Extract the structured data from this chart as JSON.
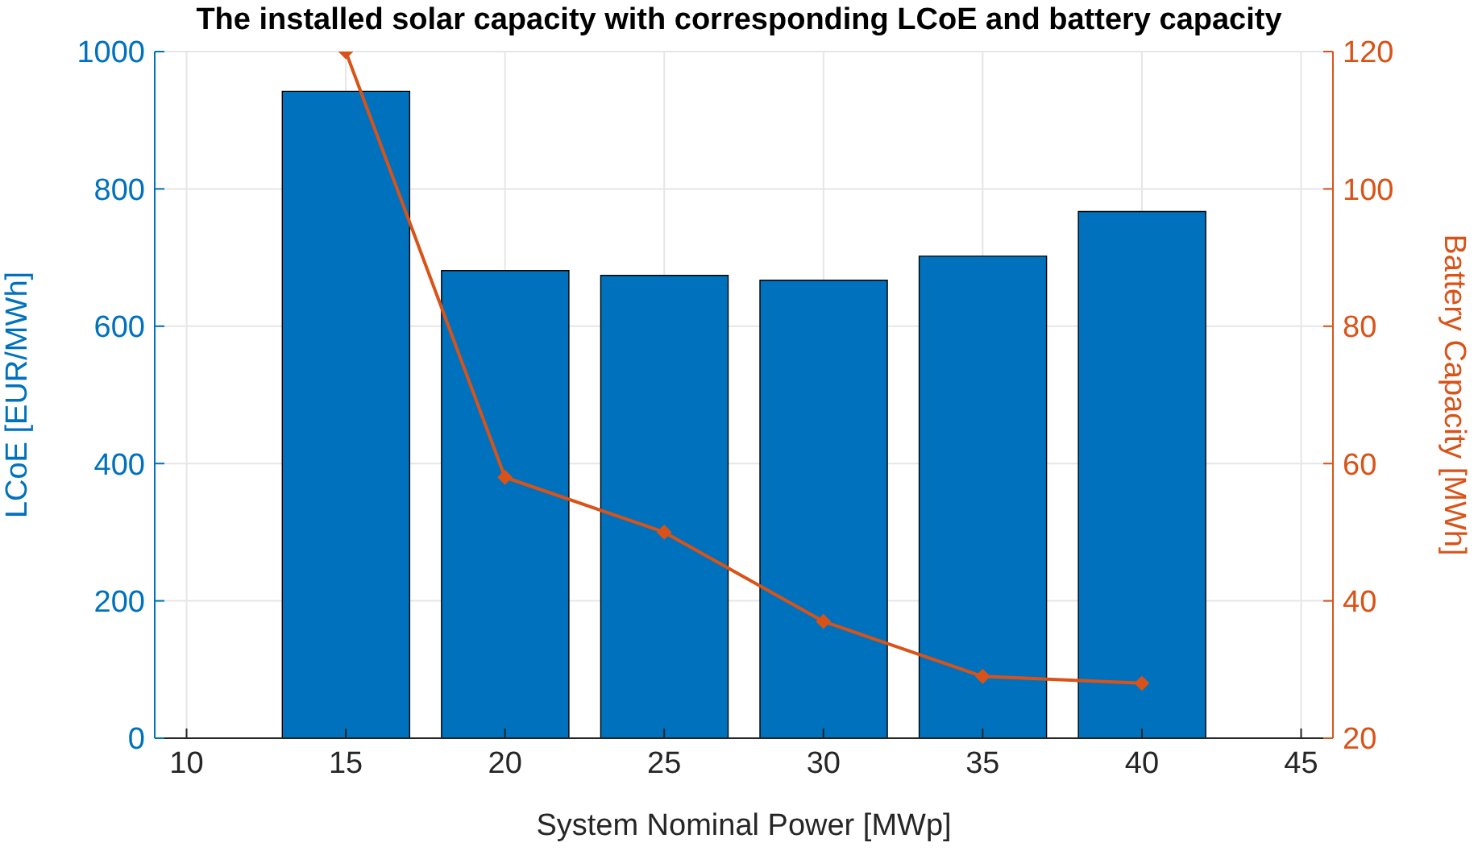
{
  "chart_data": {
    "type": "bar",
    "title": "The installed solar capacity with corresponding LCoE and battery capacity",
    "xlabel": "System Nominal Power [MWp]",
    "ylabel": "LCoE [EUR/MWh]",
    "y2label": "Battery Capacity [MWh]",
    "x": [
      15,
      20,
      25,
      30,
      35,
      40
    ],
    "series": [
      {
        "color": "#0072bd",
        "values": [
          942,
          681,
          674,
          667,
          702,
          767
        ]
      },
      {
        "type": "line",
        "axis": "y2",
        "color": "#d95319",
        "values": [
          120,
          58,
          50,
          37,
          29,
          28
        ]
      }
    ],
    "xlim": [
      9,
      46
    ],
    "xticks": [
      10,
      15,
      20,
      25,
      30,
      35,
      40,
      45
    ],
    "ylim": [
      0,
      1000
    ],
    "yticks": [
      0,
      200,
      400,
      600,
      800,
      1000
    ],
    "y2lim": [
      20,
      120
    ],
    "y2ticks": [
      20,
      40,
      60,
      80,
      100,
      120
    ],
    "grid": true,
    "marker": "diamond",
    "line_style": "solid"
  }
}
